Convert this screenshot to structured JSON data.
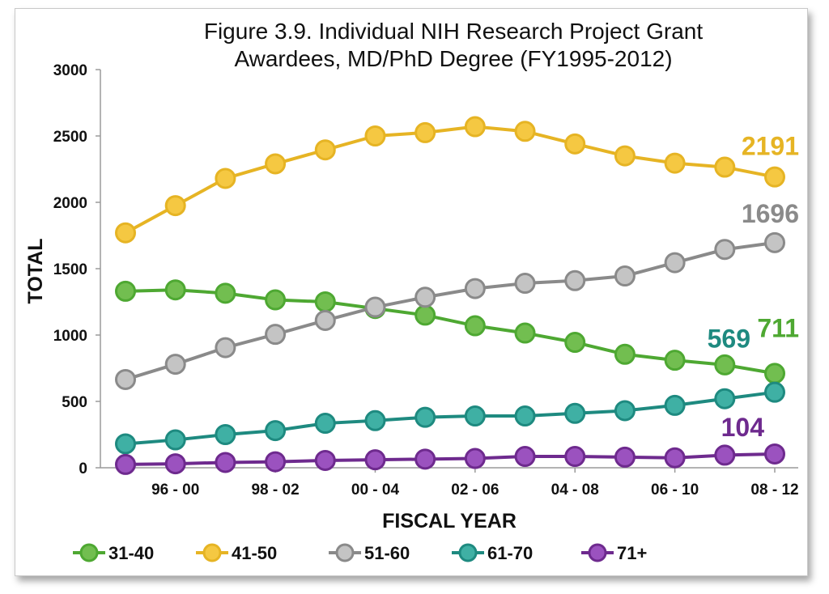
{
  "chart_data": {
    "type": "line",
    "title": "Figure 3.9. Individual NIH Research Project Grant\nAwardees, MD/PhD Degree (FY1995-2012)",
    "xlabel": "FISCAL YEAR",
    "ylabel": "TOTAL",
    "ylim": [
      0,
      3000
    ],
    "yticks": [
      0,
      500,
      1000,
      1500,
      2000,
      2500,
      3000
    ],
    "x_tick_labels": [
      "96 - 00",
      "98 - 02",
      "00 - 04",
      "02 - 06",
      "04 - 08",
      "06 - 10",
      "08 - 12"
    ],
    "x_tick_label_positions": [
      2,
      4,
      6,
      8,
      10,
      12,
      14
    ],
    "n_points": 14,
    "grid": false,
    "legend_position": "bottom",
    "series": [
      {
        "name": "31-40",
        "color": "#4ea832",
        "fill": "#72be50",
        "values": [
          1330,
          1340,
          1315,
          1265,
          1250,
          1200,
          1150,
          1070,
          1015,
          945,
          855,
          810,
          775,
          711
        ],
        "end_label": "711"
      },
      {
        "name": "41-50",
        "color": "#e6b424",
        "fill": "#f5c842",
        "values": [
          1770,
          1975,
          2180,
          2290,
          2395,
          2500,
          2525,
          2570,
          2535,
          2440,
          2350,
          2295,
          2265,
          2191
        ],
        "end_label": "2191"
      },
      {
        "name": "51-60",
        "color": "#8a8a8a",
        "fill": "#c4c4c4",
        "values": [
          665,
          780,
          905,
          1005,
          1110,
          1210,
          1285,
          1350,
          1390,
          1410,
          1445,
          1545,
          1645,
          1696
        ],
        "end_label": "1696"
      },
      {
        "name": "61-70",
        "color": "#1e8a80",
        "fill": "#3fb0a4",
        "values": [
          180,
          210,
          250,
          280,
          335,
          355,
          380,
          390,
          390,
          410,
          430,
          470,
          520,
          569
        ],
        "end_label": "569"
      },
      {
        "name": "71+",
        "color": "#6e2a8e",
        "fill": "#9b52bf",
        "values": [
          25,
          30,
          40,
          45,
          55,
          60,
          65,
          70,
          85,
          85,
          80,
          75,
          95,
          104
        ],
        "end_label": "104"
      }
    ]
  }
}
